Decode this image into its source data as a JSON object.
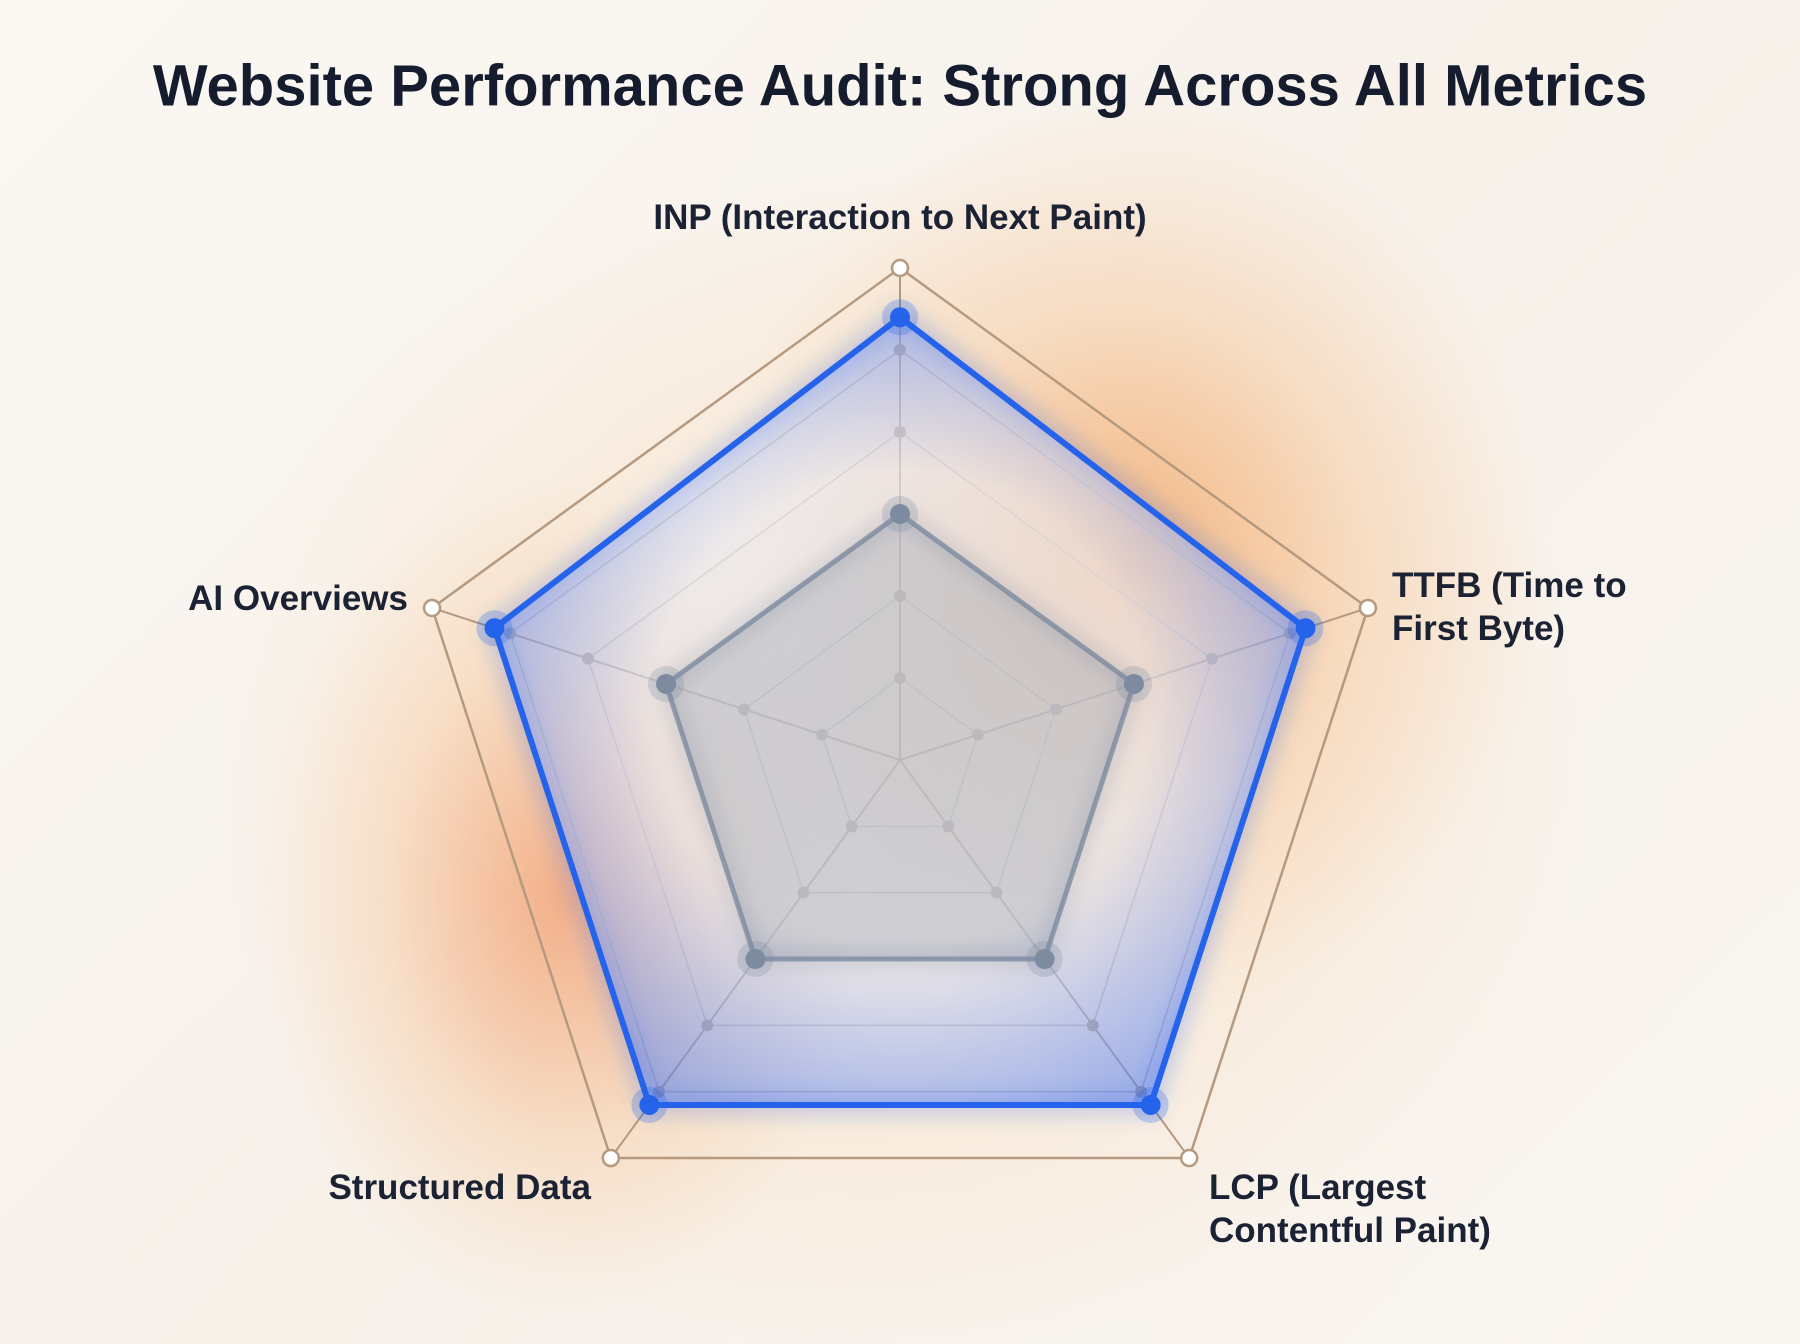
{
  "chart_data": {
    "type": "radar",
    "title": "Website Performance Audit: Strong Across All Metrics",
    "categories": [
      "INP (Interaction to Next Paint)",
      "TTFB (Time to First Byte)",
      "LCP (Largest Contentful Paint)",
      "Structured Data",
      "AI Overviews"
    ],
    "series": [
      {
        "color": "#2563eb",
        "values": [
          54,
          52,
          52,
          52,
          52
        ]
      },
      {
        "color": "#7d8ba0",
        "values": [
          30,
          30,
          30,
          30,
          30
        ]
      }
    ],
    "rlim": [
      0,
      60
    ],
    "rticks": [
      10,
      20,
      30,
      40,
      50,
      60
    ],
    "grid": true
  }
}
